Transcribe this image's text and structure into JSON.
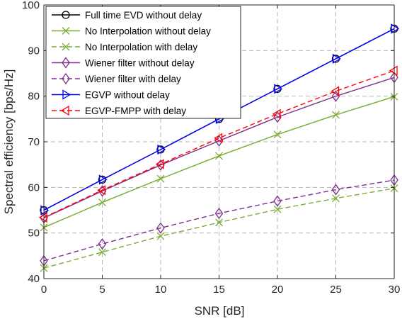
{
  "chart_data": {
    "type": "line",
    "xlabel": "SNR [dB]",
    "ylabel": "Spectral efficiency [bps/Hz]",
    "xlim": [
      0,
      30
    ],
    "ylim": [
      40,
      100
    ],
    "xticks": [
      0,
      5,
      10,
      15,
      20,
      25,
      30
    ],
    "yticks": [
      40,
      50,
      60,
      70,
      80,
      90,
      100
    ],
    "grid": true,
    "legend_position": "top-left",
    "x": [
      0,
      5,
      10,
      15,
      20,
      25,
      30
    ],
    "series": [
      {
        "name": "Full time EVD without delay",
        "values": [
          55.0,
          61.7,
          68.3,
          75.0,
          81.6,
          88.2,
          94.8
        ],
        "color": "#000000",
        "marker": "circle",
        "dash": false
      },
      {
        "name": "No Interpolation without delay",
        "values": [
          51.2,
          56.7,
          61.9,
          66.9,
          71.6,
          75.9,
          79.9
        ],
        "color": "#77ac30",
        "marker": "x",
        "dash": false
      },
      {
        "name": "No Interpolation with delay",
        "values": [
          42.3,
          45.8,
          49.3,
          52.3,
          55.2,
          57.6,
          59.8
        ],
        "color": "#77ac30",
        "marker": "x",
        "dash": true
      },
      {
        "name": "Wiener filter without delay",
        "values": [
          53.3,
          59.2,
          64.9,
          70.2,
          75.4,
          80.0,
          84.1
        ],
        "color": "#7e2f8e",
        "marker": "diamond",
        "dash": false
      },
      {
        "name": "Wiener filter with delay",
        "values": [
          43.9,
          47.6,
          51.1,
          54.3,
          57.0,
          59.5,
          61.6
        ],
        "color": "#7e2f8e",
        "marker": "diamond",
        "dash": true
      },
      {
        "name": "EGVP without delay",
        "values": [
          55.0,
          61.7,
          68.3,
          75.0,
          81.6,
          88.2,
          94.8
        ],
        "color": "#0000ff",
        "marker": "triangle-right",
        "dash": false
      },
      {
        "name": "EGVP-FMPP with delay",
        "values": [
          53.4,
          59.4,
          65.1,
          70.8,
          76.1,
          81.1,
          85.6
        ],
        "color": "#ff0000",
        "marker": "triangle-left",
        "dash": true
      }
    ]
  }
}
